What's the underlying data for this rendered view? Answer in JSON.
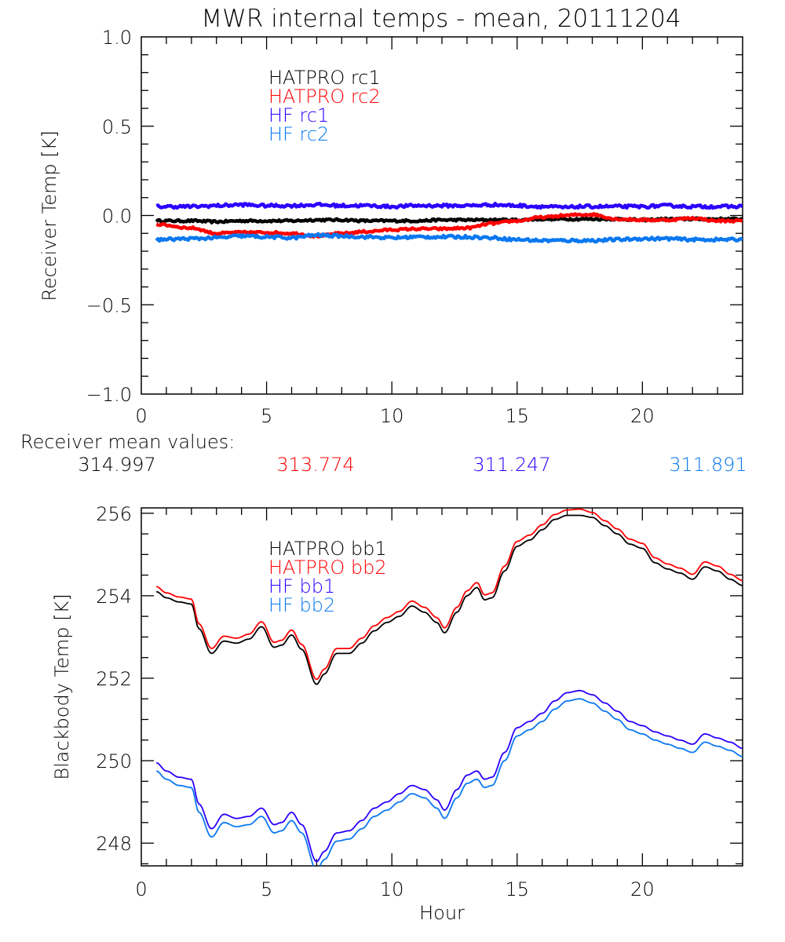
{
  "colors": {
    "hatpro1": "#000000",
    "hatpro2": "#ff0000",
    "hf1": "#2a00ff",
    "hf2": "#0a78f0"
  },
  "chart_data": [
    {
      "type": "line",
      "title": "MWR internal temps - mean, 20111204",
      "xlabel": "",
      "ylabel": "Receiver Temp [K]",
      "xlim": [
        0,
        24
      ],
      "ylim": [
        -1.0,
        1.0
      ],
      "xticks": [
        0,
        5,
        10,
        15,
        20
      ],
      "xtick_labels": [
        "0",
        "5",
        "10",
        "15",
        "20"
      ],
      "yticks": [
        -1.0,
        -0.5,
        0.0,
        0.5,
        1.0
      ],
      "ytick_labels": [
        "−1.0",
        "−0.5",
        "0.0",
        "0.5",
        "1.0"
      ],
      "grid": false,
      "legend": {
        "placement": "top-left-center",
        "entries": [
          "HATPRO rc1",
          "HATPRO rc2",
          "HF rc1",
          "HF rc2"
        ]
      },
      "x": [
        0.6,
        2,
        3,
        4,
        5,
        6,
        7,
        8,
        9,
        10,
        11,
        12,
        13,
        14,
        15,
        16,
        17,
        17.5,
        18,
        19,
        20,
        21,
        22,
        23,
        24
      ],
      "series": [
        {
          "name": "HATPRO rc1",
          "color_key": "hatpro1",
          "noise": 0.006,
          "values": [
            -0.03,
            -0.03,
            -0.035,
            -0.03,
            -0.03,
            -0.03,
            -0.025,
            -0.025,
            -0.03,
            -0.03,
            -0.03,
            -0.025,
            -0.025,
            -0.025,
            -0.025,
            -0.02,
            -0.02,
            -0.02,
            -0.02,
            -0.02,
            -0.025,
            -0.02,
            -0.02,
            -0.02,
            -0.02
          ]
        },
        {
          "name": "HATPRO rc2",
          "color_key": "hatpro2",
          "noise": 0.006,
          "values": [
            -0.05,
            -0.07,
            -0.1,
            -0.095,
            -0.095,
            -0.1,
            -0.115,
            -0.1,
            -0.09,
            -0.08,
            -0.075,
            -0.075,
            -0.07,
            -0.045,
            -0.03,
            -0.01,
            0.0,
            0.005,
            0.005,
            -0.02,
            -0.025,
            -0.025,
            -0.015,
            -0.03,
            -0.03
          ]
        },
        {
          "name": "HF rc1",
          "color_key": "hf1",
          "noise": 0.008,
          "values": [
            0.05,
            0.05,
            0.055,
            0.06,
            0.055,
            0.055,
            0.06,
            0.055,
            0.055,
            0.05,
            0.055,
            0.055,
            0.055,
            0.06,
            0.055,
            0.05,
            0.045,
            0.05,
            0.05,
            0.05,
            0.05,
            0.055,
            0.05,
            0.05,
            0.05
          ]
        },
        {
          "name": "HF rc2",
          "color_key": "hf2",
          "noise": 0.008,
          "values": [
            -0.135,
            -0.13,
            -0.125,
            -0.115,
            -0.12,
            -0.125,
            -0.11,
            -0.115,
            -0.12,
            -0.125,
            -0.12,
            -0.12,
            -0.12,
            -0.125,
            -0.135,
            -0.14,
            -0.14,
            -0.14,
            -0.14,
            -0.135,
            -0.13,
            -0.13,
            -0.135,
            -0.135,
            -0.135
          ]
        }
      ]
    },
    {
      "type": "line",
      "title": "",
      "xlabel": "Hour",
      "ylabel": "Blackbody Temp [K]",
      "xlim": [
        0,
        24
      ],
      "ylim": [
        247.45,
        256.13
      ],
      "xticks": [
        0,
        5,
        10,
        15,
        20
      ],
      "xtick_labels": [
        "0",
        "5",
        "10",
        "15",
        "20"
      ],
      "yticks": [
        248,
        250,
        252,
        254,
        256
      ],
      "ytick_labels": [
        "248",
        "250",
        "252",
        "254",
        "256"
      ],
      "grid": false,
      "legend": {
        "placement": "top-left-center",
        "entries": [
          "HATPRO bb1",
          "HATPRO bb2",
          "HF bb1",
          "HF bb2"
        ]
      },
      "x": [
        0.6,
        1.0,
        1.5,
        2.0,
        2.3,
        2.8,
        3.3,
        3.8,
        4.3,
        4.8,
        5.3,
        5.6,
        6.0,
        6.4,
        7.0,
        7.3,
        7.8,
        8.3,
        8.8,
        9.3,
        9.8,
        10.3,
        10.8,
        11.3,
        11.8,
        12.1,
        12.6,
        13.0,
        13.4,
        13.7,
        14.0,
        14.5,
        15.0,
        15.5,
        16.0,
        16.5,
        17.0,
        17.5,
        18.0,
        18.5,
        19.0,
        19.5,
        20.0,
        20.5,
        21.0,
        21.5,
        22.0,
        22.5,
        23.0,
        23.5,
        24.0
      ],
      "series": [
        {
          "name": "HATPRO bb1",
          "color_key": "hatpro1",
          "values": [
            254.1,
            253.95,
            253.85,
            253.8,
            253.2,
            252.6,
            252.9,
            252.85,
            252.95,
            253.25,
            252.75,
            252.8,
            253.05,
            252.7,
            251.85,
            252.1,
            252.6,
            252.6,
            252.85,
            253.15,
            253.35,
            253.5,
            253.75,
            253.6,
            253.35,
            253.1,
            253.6,
            254.0,
            254.2,
            253.9,
            253.95,
            254.6,
            255.2,
            255.35,
            255.6,
            255.85,
            255.95,
            255.95,
            255.9,
            255.7,
            255.5,
            255.25,
            255.15,
            254.8,
            254.65,
            254.55,
            254.4,
            254.7,
            254.6,
            254.4,
            254.25
          ]
        },
        {
          "name": "HATPRO bb2",
          "color_key": "hatpro2",
          "values": [
            254.22,
            254.07,
            253.97,
            253.92,
            253.32,
            252.72,
            253.02,
            252.97,
            253.07,
            253.37,
            252.87,
            252.92,
            253.17,
            252.82,
            251.97,
            252.22,
            252.72,
            252.72,
            252.97,
            253.27,
            253.47,
            253.62,
            253.87,
            253.72,
            253.47,
            253.22,
            253.72,
            254.12,
            254.32,
            254.02,
            254.07,
            254.72,
            255.32,
            255.47,
            255.72,
            255.97,
            256.08,
            256.1,
            256.02,
            255.82,
            255.62,
            255.37,
            255.27,
            254.92,
            254.77,
            254.67,
            254.52,
            254.82,
            254.72,
            254.52,
            254.37
          ]
        },
        {
          "name": "HF bb1",
          "color_key": "hf1",
          "values": [
            249.95,
            249.75,
            249.6,
            249.55,
            248.95,
            248.35,
            248.7,
            248.6,
            248.65,
            248.85,
            248.45,
            248.5,
            248.75,
            248.45,
            247.55,
            247.8,
            248.25,
            248.3,
            248.55,
            248.85,
            249.0,
            249.2,
            249.4,
            249.3,
            249.05,
            248.8,
            249.3,
            249.65,
            249.75,
            249.55,
            249.6,
            250.2,
            250.8,
            250.95,
            251.15,
            251.45,
            251.65,
            251.7,
            251.6,
            251.4,
            251.2,
            250.95,
            250.85,
            250.7,
            250.6,
            250.5,
            250.4,
            250.65,
            250.55,
            250.45,
            250.3
          ]
        },
        {
          "name": "HF bb2",
          "color_key": "hf2",
          "values": [
            249.75,
            249.55,
            249.4,
            249.35,
            248.75,
            248.15,
            248.5,
            248.4,
            248.45,
            248.65,
            248.25,
            248.3,
            248.55,
            248.25,
            247.35,
            247.6,
            248.05,
            248.1,
            248.35,
            248.65,
            248.8,
            249.0,
            249.2,
            249.1,
            248.85,
            248.6,
            249.1,
            249.45,
            249.55,
            249.35,
            249.4,
            250.0,
            250.6,
            250.75,
            250.95,
            251.25,
            251.45,
            251.5,
            251.4,
            251.2,
            251.0,
            250.75,
            250.65,
            250.5,
            250.4,
            250.3,
            250.2,
            250.45,
            250.35,
            250.25,
            250.1
          ]
        }
      ]
    }
  ],
  "receiver_means": {
    "label": "Receiver mean values:",
    "values": [
      {
        "value": "314.997",
        "color_key": "hatpro1"
      },
      {
        "value": "313.774",
        "color_key": "hatpro2"
      },
      {
        "value": "311.247",
        "color_key": "hf1"
      },
      {
        "value": "311.891",
        "color_key": "hf2"
      }
    ]
  }
}
